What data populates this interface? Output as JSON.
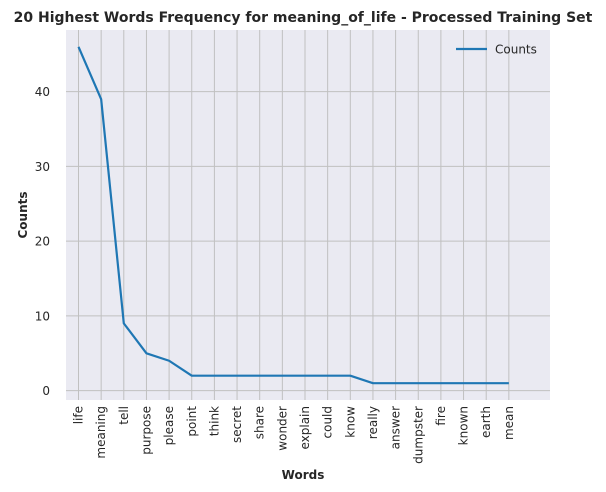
{
  "chart_data": {
    "type": "line",
    "title": "20 Highest Words Frequency for meaning_of_life - Processed Training Set",
    "xlabel": "Words",
    "ylabel": "Counts",
    "categories": [
      "life",
      "meaning",
      "tell",
      "purpose",
      "please",
      "point",
      "think",
      "secret",
      "share",
      "wonder",
      "explain",
      "could",
      "know",
      "really",
      "answer",
      "dumpster",
      "fire",
      "known",
      "earth",
      "mean"
    ],
    "series": [
      {
        "name": "Counts",
        "values": [
          46,
          39,
          9,
          5,
          4,
          2,
          2,
          2,
          2,
          2,
          2,
          2,
          2,
          1,
          1,
          1,
          1,
          1,
          1,
          1
        ]
      }
    ],
    "ylim": [
      -1.25,
      48.25
    ],
    "yticks": [
      0,
      10,
      20,
      30,
      40
    ],
    "grid": true,
    "legend_position": "top-right",
    "colors": {
      "line": "#1f77b4",
      "plot_bg": "#eaeaf2",
      "grid": "#c0c0c0"
    }
  }
}
